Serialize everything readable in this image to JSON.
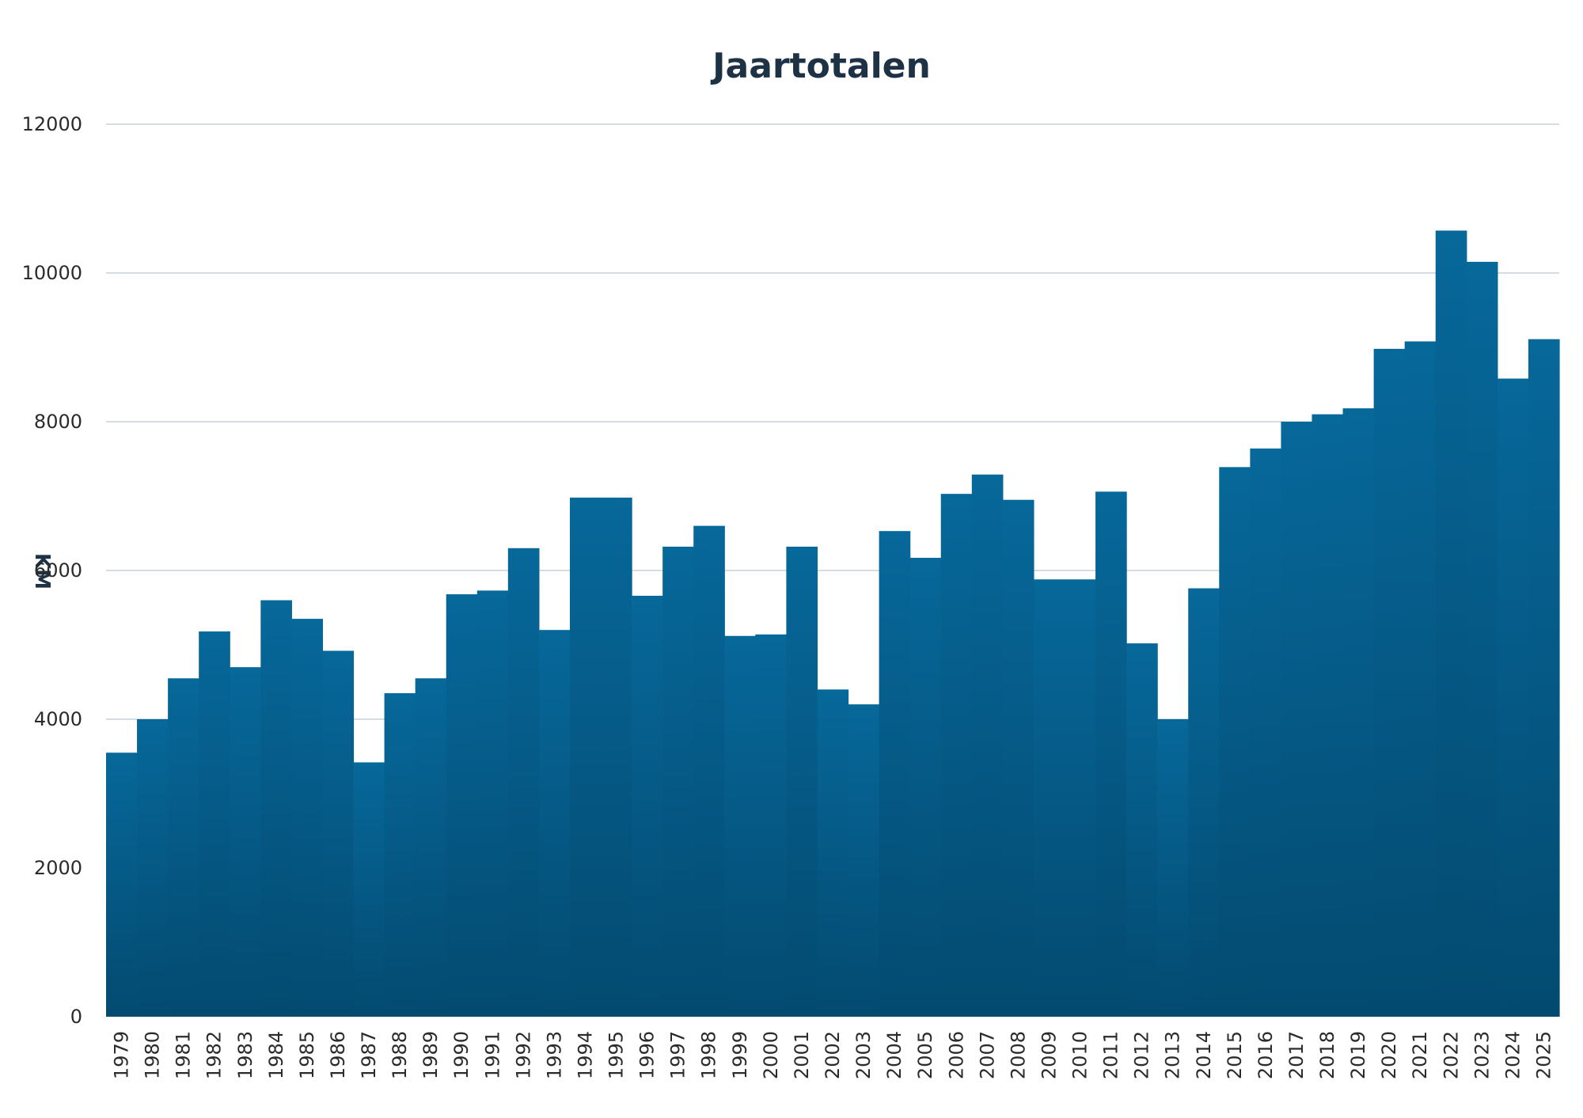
{
  "chart_data": {
    "type": "bar",
    "title": "Jaartotalen",
    "xlabel": "",
    "ylabel": "KM",
    "ylim": [
      0,
      12000
    ],
    "yticks": [
      0,
      2000,
      4000,
      6000,
      8000,
      10000,
      12000
    ],
    "grid": true,
    "legend": "none",
    "colors": {
      "bar_top": "#07689a",
      "bar_bottom": "#034a70",
      "grid": "#d3dde3",
      "title": "#1e3246"
    },
    "categories": [
      "1979",
      "1980",
      "1981",
      "1982",
      "1983",
      "1984",
      "1985",
      "1986",
      "1987",
      "1988",
      "1989",
      "1990",
      "1991",
      "1992",
      "1993",
      "1994",
      "1995",
      "1996",
      "1997",
      "1998",
      "1999",
      "2000",
      "2001",
      "2002",
      "2003",
      "2004",
      "2005",
      "2006",
      "2007",
      "2008",
      "2009",
      "2010",
      "2011",
      "2012",
      "2013",
      "2014",
      "2015",
      "2016",
      "2017",
      "2018",
      "2019",
      "2020",
      "2021",
      "2022",
      "2023",
      "2024",
      "2025"
    ],
    "values": [
      3550,
      4000,
      4550,
      5180,
      4700,
      5600,
      5350,
      4920,
      3420,
      4350,
      4550,
      5680,
      5730,
      6300,
      5200,
      6980,
      6980,
      5660,
      6320,
      6600,
      5120,
      5140,
      6320,
      4400,
      4200,
      6530,
      6170,
      7030,
      7290,
      6950,
      5880,
      5880,
      7060,
      5020,
      4000,
      5760,
      7390,
      7640,
      8000,
      8100,
      8180,
      8980,
      9080,
      10570,
      10150,
      8580,
      9110
    ]
  }
}
